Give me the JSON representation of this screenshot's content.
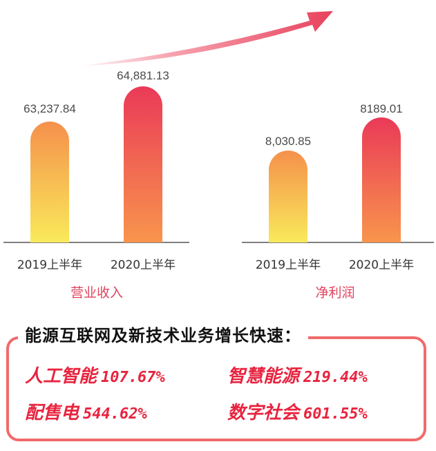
{
  "colors": {
    "bar_bottom": "#f9ea5a",
    "bar_mid": "#f8954c",
    "bar_top_old": "#f5904c",
    "bar_top_new": "#ea3a58",
    "title": "#e0435d",
    "highlight": "#e8243f",
    "frame": "#f06a6a",
    "arrow": "#e8415c"
  },
  "chart_data": [
    {
      "type": "bar",
      "title": "营业收入",
      "categories": [
        "2019上半年",
        "2020上半年"
      ],
      "values": [
        63237.84,
        64881.13
      ],
      "labels": [
        "63,237.84",
        "64,881.13"
      ]
    },
    {
      "type": "bar",
      "title": "净利润",
      "categories": [
        "2019上半年",
        "2020上半年"
      ],
      "values": [
        8030.85,
        8189.01
      ],
      "labels": [
        "8,030.85",
        "8189.01"
      ]
    }
  ],
  "highlights": {
    "heading": "能源互联网及新技术业务增长快速：",
    "items": [
      {
        "name": "人工智能",
        "value": "107.67%"
      },
      {
        "name": "智慧能源",
        "value": "219.44%"
      },
      {
        "name": "配售电",
        "value": "544.62%"
      },
      {
        "name": "数字社会",
        "value": "601.55%"
      }
    ]
  }
}
